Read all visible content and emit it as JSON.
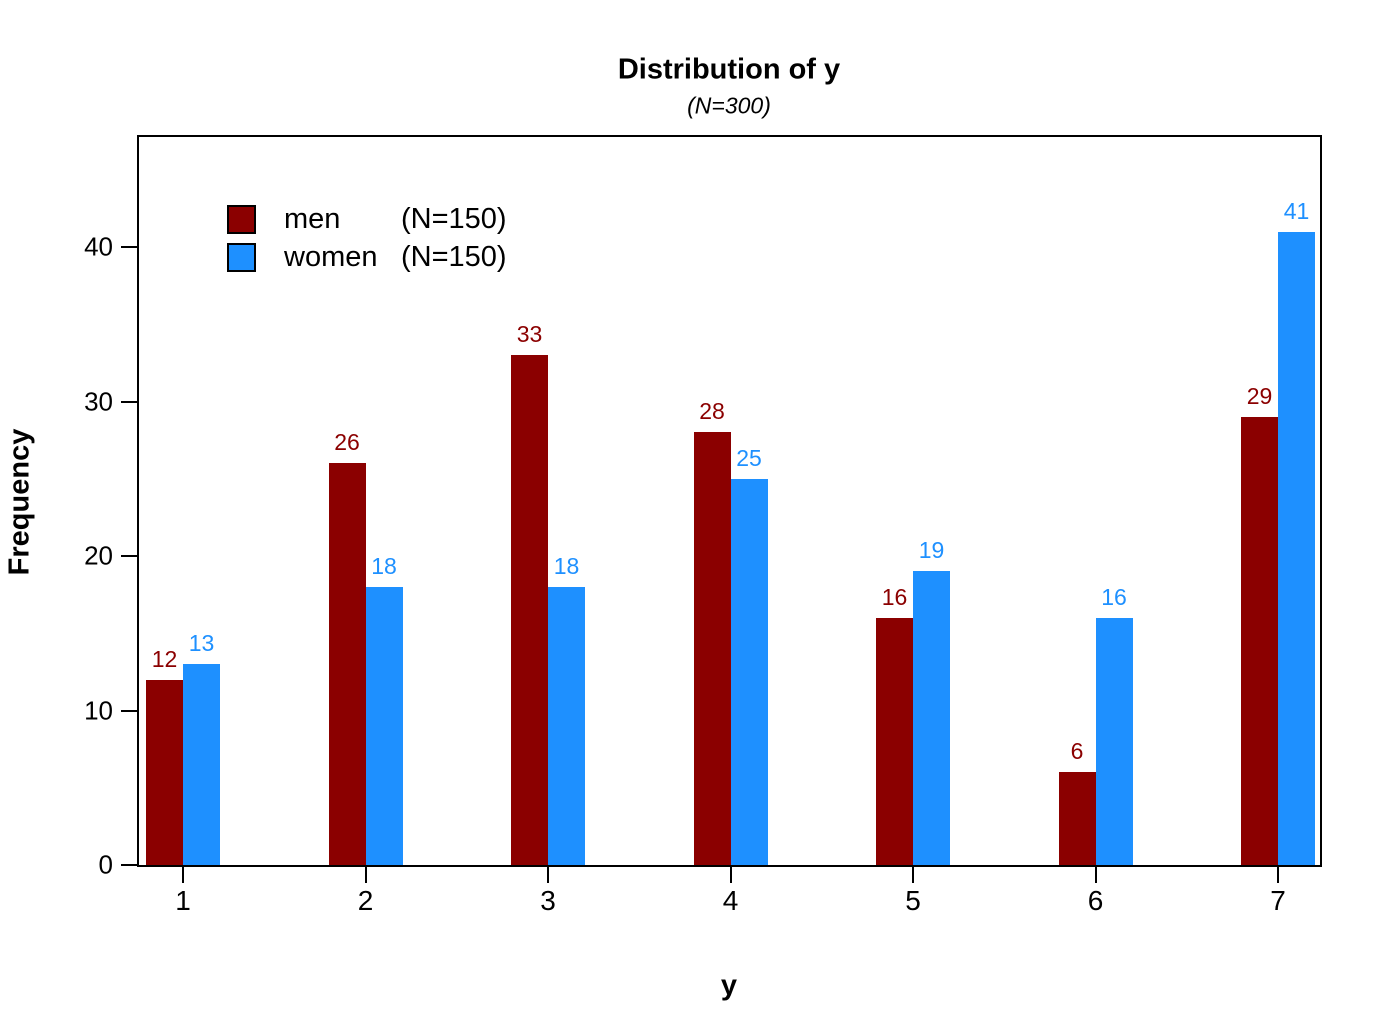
{
  "figure": {
    "title": "Distribution of y",
    "subtitle": "(N=300)",
    "xlabel": "y",
    "ylabel": "Frequency"
  },
  "chart_data": {
    "type": "bar",
    "title": "Distribution of y",
    "subtitle": "(N=300)",
    "xlabel": "y",
    "ylabel": "Frequency",
    "categories": [
      "1",
      "2",
      "3",
      "4",
      "5",
      "6",
      "7"
    ],
    "series": [
      {
        "name": "men",
        "legend_n": "(N=150)",
        "color": "#8B0000",
        "values": [
          12,
          26,
          33,
          28,
          16,
          6,
          29
        ]
      },
      {
        "name": "women",
        "legend_n": "(N=150)",
        "color": "#1E90FF",
        "values": [
          13,
          18,
          18,
          25,
          19,
          16,
          41
        ]
      }
    ],
    "yticks": [
      0,
      10,
      20,
      30,
      40
    ],
    "ylim": [
      0,
      47.1
    ],
    "grid": false,
    "legend_position": "top-left",
    "value_labels": true,
    "bar_value_label_colors": [
      "#8B0000",
      "#1E90FF"
    ]
  },
  "colors": {
    "men": "#8B0000",
    "women": "#1E90FF",
    "axis": "#000000",
    "background": "#FFFFFF"
  }
}
